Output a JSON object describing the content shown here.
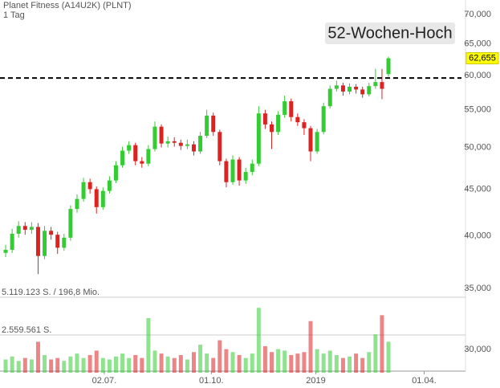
{
  "chart_data": {
    "type": "candlestick",
    "title": "Planet Fitness (A14U2K) (PLNT)",
    "subtitle": "1 Tag",
    "up_color": "#33cc33",
    "down_color": "#dd2222",
    "ylog": true,
    "ylim": [
      30,
      70
    ],
    "yticks": [
      {
        "value": 30,
        "label": "30,000"
      },
      {
        "value": 35,
        "label": "35,000"
      },
      {
        "value": 40,
        "label": "40,000"
      },
      {
        "value": 45,
        "label": "45,000"
      },
      {
        "value": 50,
        "label": "50,000"
      },
      {
        "value": 55,
        "label": "55,000"
      },
      {
        "value": 60,
        "label": "60,000"
      },
      {
        "value": 65,
        "label": "65,000"
      },
      {
        "value": 70,
        "label": "70,000"
      }
    ],
    "xlim": [
      0,
      71
    ],
    "xticks": [
      {
        "value": 15.7,
        "label": "02.07."
      },
      {
        "value": 32.2,
        "label": "01.10."
      },
      {
        "value": 48.3,
        "label": "2019"
      },
      {
        "value": 65,
        "label": "01.04."
      }
    ],
    "open": [
      38.3,
      38.6,
      40.2,
      41.0,
      40.6,
      40.9,
      38.0,
      40.5,
      40.1,
      38.8,
      39.8,
      42.8,
      43.9,
      45.8,
      45.0,
      43.0,
      44.8,
      46.0,
      47.8,
      49.6,
      50.3,
      48.3,
      48.0,
      49.8,
      52.7,
      50.5,
      50.8,
      50.6,
      50.2,
      50.4,
      49.5,
      51.5,
      54.2,
      52.0,
      48.3,
      45.8,
      48.5,
      46.0,
      47.0,
      48.0,
      54.5,
      53.0,
      52.0,
      54.3,
      56.2,
      54.0,
      53.3,
      52.5,
      49.5,
      52.0,
      55.5,
      58.0,
      58.5,
      57.6,
      58.3,
      57.9,
      57.2,
      58.4,
      59.0,
      60.2
    ],
    "high": [
      39.1,
      40.7,
      41.5,
      41.4,
      41.4,
      41.3,
      41.0,
      40.9,
      40.4,
      40.2,
      43.2,
      44.4,
      46.3,
      46.2,
      45.3,
      45.2,
      46.5,
      48.3,
      50.1,
      50.8,
      50.6,
      48.8,
      50.3,
      53.4,
      53.0,
      51.4,
      51.3,
      51.0,
      51.0,
      50.8,
      52.0,
      55.0,
      54.6,
      52.3,
      48.6,
      49.0,
      48.8,
      47.5,
      48.5,
      55.5,
      55.0,
      53.4,
      54.8,
      57.0,
      56.6,
      54.5,
      53.7,
      52.8,
      52.4,
      56.0,
      58.5,
      59.2,
      58.9,
      58.8,
      58.7,
      58.3,
      58.9,
      61.0,
      61.0,
      62.9
    ],
    "low": [
      37.9,
      38.3,
      39.8,
      40.1,
      40.2,
      36.3,
      37.7,
      39.6,
      38.2,
      38.5,
      39.5,
      42.4,
      43.6,
      44.5,
      42.3,
      42.7,
      44.5,
      45.7,
      47.5,
      49.2,
      47.8,
      47.5,
      47.7,
      49.5,
      50.0,
      50.0,
      50.1,
      49.7,
      49.8,
      49.0,
      49.2,
      51.2,
      51.5,
      47.8,
      45.2,
      45.5,
      45.4,
      45.6,
      46.6,
      47.7,
      52.4,
      49.8,
      51.6,
      53.9,
      53.4,
      52.8,
      51.6,
      48.3,
      49.2,
      51.7,
      55.2,
      57.6,
      57.0,
      57.2,
      57.3,
      56.7,
      56.9,
      58.0,
      56.5,
      59.8
    ],
    "close": [
      38.6,
      40.2,
      41.0,
      40.6,
      40.9,
      38.0,
      40.5,
      40.1,
      38.8,
      39.8,
      42.8,
      43.9,
      45.8,
      45.0,
      43.0,
      44.8,
      46.0,
      47.8,
      49.6,
      50.3,
      48.3,
      48.0,
      49.8,
      52.7,
      50.5,
      50.8,
      50.6,
      50.2,
      50.4,
      49.5,
      51.5,
      54.2,
      52.0,
      48.3,
      45.8,
      48.5,
      46.0,
      47.0,
      48.0,
      54.5,
      53.0,
      52.0,
      54.3,
      56.2,
      54.0,
      53.3,
      52.5,
      49.5,
      52.0,
      55.5,
      58.0,
      58.5,
      57.6,
      58.3,
      57.9,
      57.2,
      58.4,
      59.0,
      58.0,
      62.655
    ],
    "last_price": {
      "value": 62.655,
      "label": "62,655"
    },
    "annotation": {
      "text": "52-Wochen-Hoch",
      "value": 59.6
    },
    "volume": {
      "ylim": [
        0,
        5119123
      ],
      "yticks": [
        {
          "value": 5119123,
          "label": "5.119.123 S. / 196,8 Mio."
        },
        {
          "value": 2559561,
          "label": "2.559.561 S."
        }
      ],
      "values": [
        900000,
        1100000,
        800000,
        1000000,
        900000,
        2100000,
        1200000,
        900000,
        1000000,
        800000,
        1100000,
        1300000,
        1000000,
        1200000,
        1500000,
        1000000,
        900000,
        1100000,
        1300000,
        1000000,
        1200000,
        1000000,
        3700000,
        1500000,
        1300000,
        1100000,
        1000000,
        1200000,
        900000,
        1400000,
        1900000,
        1300000,
        1000000,
        2200000,
        1600000,
        1400000,
        1200000,
        1000000,
        1300000,
        4400000,
        1800000,
        1400000,
        1600000,
        1500000,
        1200000,
        1300000,
        1400000,
        3500000,
        1600000,
        1300000,
        1500000,
        1200000,
        1000000,
        1100000,
        1300000,
        1000000,
        1400000,
        2600000,
        3900000,
        2100000
      ]
    }
  }
}
